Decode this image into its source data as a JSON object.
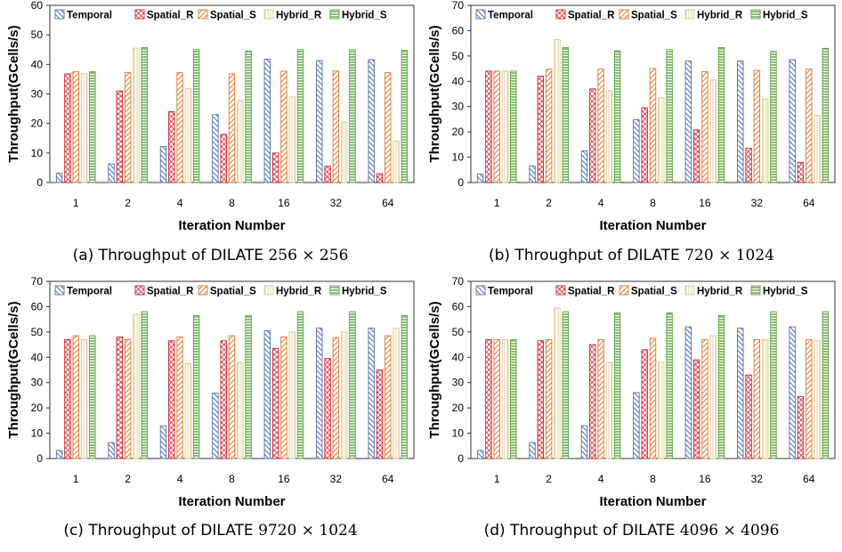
{
  "legend": [
    "Temporal",
    "Spatial_R",
    "Spatial_S",
    "Hybrid_R",
    "Hybrid_S"
  ],
  "colors": {
    "temporal": "#4f6fb5",
    "spatial_r": "#d9212a",
    "spatial_s": "#e9772a",
    "hybrid_r": "#d8c98a",
    "hybrid_s": "#5aa33c"
  },
  "chart_data": [
    {
      "type": "bar",
      "caption_prefix": "(a) Throughput of DILATE",
      "caption_math": "256 × 256",
      "categories": [
        "1",
        "2",
        "4",
        "8",
        "16",
        "32",
        "64"
      ],
      "xlabel": "Iteration Number",
      "ylabel": "Throughput(GCells/s)",
      "ylim": [
        0,
        60
      ],
      "yticks": [
        0,
        10,
        20,
        30,
        40,
        50,
        60
      ],
      "grid": false,
      "legend_position": "top",
      "series": [
        {
          "name": "Temporal",
          "values": [
            3.2,
            6.3,
            12.2,
            23.0,
            41.8,
            41.3,
            41.6
          ]
        },
        {
          "name": "Spatial_R",
          "values": [
            36.8,
            31.0,
            24.0,
            16.3,
            10.0,
            5.5,
            3.0
          ]
        },
        {
          "name": "Spatial_S",
          "values": [
            37.5,
            37.3,
            37.2,
            36.8,
            37.7,
            37.8,
            37.2
          ]
        },
        {
          "name": "Hybrid_R",
          "values": [
            36.8,
            45.5,
            31.8,
            27.8,
            29.0,
            20.5,
            14.0
          ]
        },
        {
          "name": "Hybrid_S",
          "values": [
            37.5,
            45.7,
            45.0,
            44.5,
            45.0,
            45.0,
            44.8
          ]
        }
      ]
    },
    {
      "type": "bar",
      "caption_prefix": "(b) Throughput of DILATE",
      "caption_math": "720 × 1024",
      "categories": [
        "1",
        "2",
        "4",
        "8",
        "16",
        "32",
        "64"
      ],
      "xlabel": "Iteration Number",
      "ylabel": "Throughput(GCells/s)",
      "ylim": [
        0,
        70
      ],
      "yticks": [
        0,
        10,
        20,
        30,
        40,
        50,
        60,
        70
      ],
      "grid": false,
      "legend_position": "top",
      "series": [
        {
          "name": "Temporal",
          "values": [
            3.3,
            6.5,
            12.5,
            24.8,
            48.0,
            48.0,
            48.5
          ]
        },
        {
          "name": "Spatial_R",
          "values": [
            44.0,
            42.0,
            37.0,
            29.5,
            20.8,
            13.5,
            8.0
          ]
        },
        {
          "name": "Spatial_S",
          "values": [
            44.0,
            44.8,
            44.8,
            45.0,
            43.8,
            44.3,
            44.8
          ]
        },
        {
          "name": "Hybrid_R",
          "values": [
            44.0,
            56.5,
            36.2,
            33.5,
            40.5,
            33.0,
            26.5
          ]
        },
        {
          "name": "Hybrid_S",
          "values": [
            44.0,
            53.3,
            52.0,
            52.5,
            53.3,
            51.8,
            53.0
          ]
        }
      ]
    },
    {
      "type": "bar",
      "caption_prefix": "(c) Throughput of DILATE",
      "caption_math": "9720 × 1024",
      "categories": [
        "1",
        "2",
        "4",
        "8",
        "16",
        "32",
        "64"
      ],
      "xlabel": "Iteration Number",
      "ylabel": "Throughput(GCells/s)",
      "ylim": [
        0,
        70
      ],
      "yticks": [
        0,
        10,
        20,
        30,
        40,
        50,
        60,
        70
      ],
      "grid": false,
      "legend_position": "top",
      "series": [
        {
          "name": "Temporal",
          "values": [
            3.2,
            6.3,
            12.8,
            25.8,
            50.5,
            51.5,
            51.5
          ]
        },
        {
          "name": "Spatial_R",
          "values": [
            47.0,
            48.0,
            46.5,
            46.5,
            43.5,
            39.5,
            35.0
          ]
        },
        {
          "name": "Spatial_S",
          "values": [
            48.5,
            47.0,
            48.0,
            48.5,
            48.0,
            47.8,
            48.5
          ]
        },
        {
          "name": "Hybrid_R",
          "values": [
            47.0,
            57.0,
            37.5,
            38.0,
            50.0,
            50.0,
            51.5
          ]
        },
        {
          "name": "Hybrid_S",
          "values": [
            48.5,
            58.0,
            56.5,
            56.5,
            58.0,
            58.0,
            56.5
          ]
        }
      ]
    },
    {
      "type": "bar",
      "caption_prefix": "(d) Throughput of DILATE",
      "caption_math": "4096 × 4096",
      "categories": [
        "1",
        "2",
        "4",
        "8",
        "16",
        "32",
        "64"
      ],
      "xlabel": "Iteration Number",
      "ylabel": "Throughput(GCells/s)",
      "ylim": [
        0,
        70
      ],
      "yticks": [
        0,
        10,
        20,
        30,
        40,
        50,
        60,
        70
      ],
      "grid": false,
      "legend_position": "top",
      "series": [
        {
          "name": "Temporal",
          "values": [
            3.2,
            6.3,
            13.0,
            26.0,
            52.0,
            51.5,
            52.0
          ]
        },
        {
          "name": "Spatial_R",
          "values": [
            47.0,
            46.5,
            45.0,
            43.0,
            39.0,
            33.0,
            24.5
          ]
        },
        {
          "name": "Spatial_S",
          "values": [
            47.0,
            47.0,
            47.0,
            47.5,
            47.0,
            47.0,
            47.0
          ]
        },
        {
          "name": "Hybrid_R",
          "values": [
            47.0,
            59.5,
            38.0,
            38.0,
            48.5,
            47.0,
            46.5
          ]
        },
        {
          "name": "Hybrid_S",
          "values": [
            47.0,
            58.0,
            57.5,
            57.5,
            56.5,
            58.0,
            58.0
          ]
        }
      ]
    }
  ]
}
